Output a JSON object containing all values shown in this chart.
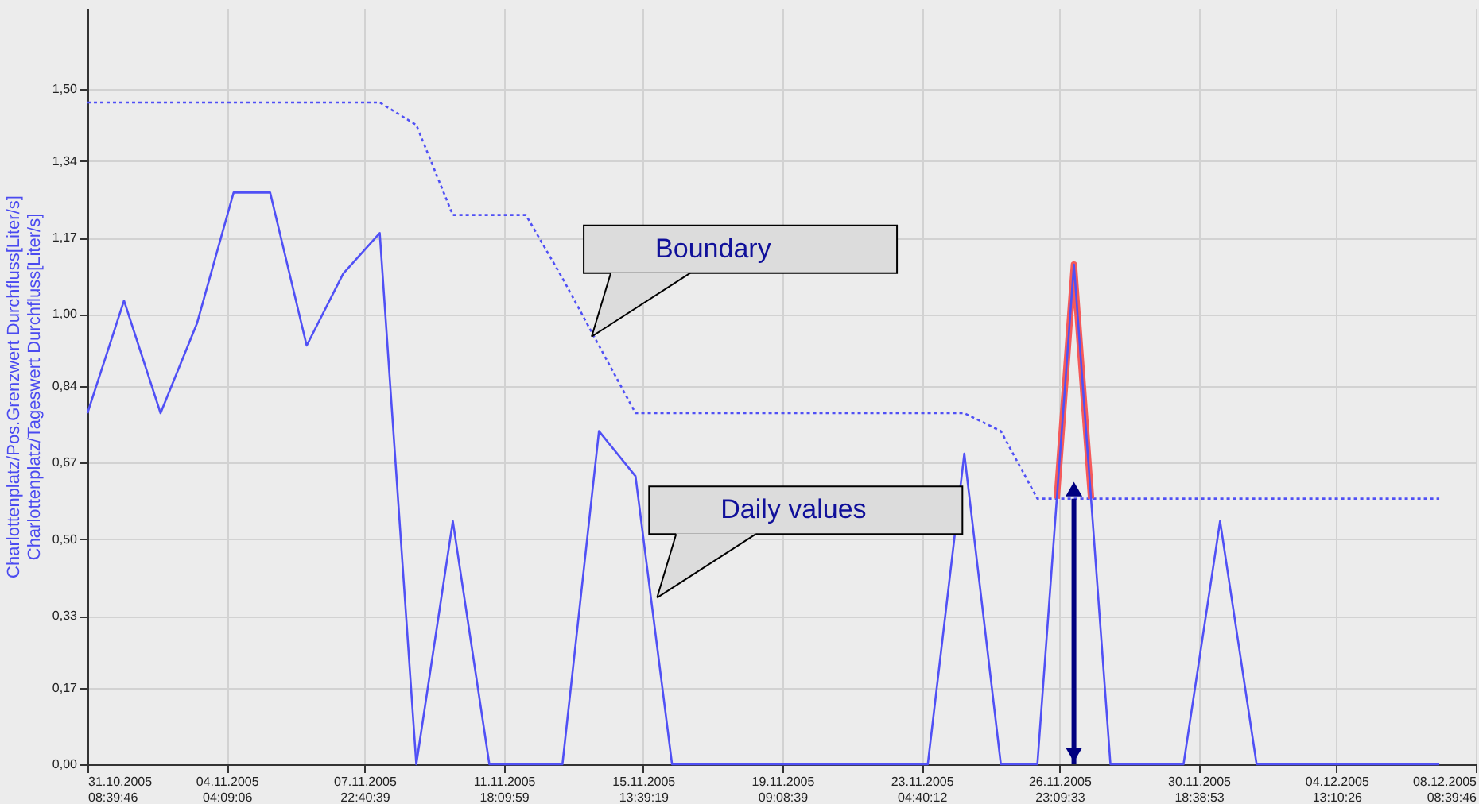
{
  "chart_data": {
    "type": "line",
    "ylabel": "Charlottenplatz/Pos.Grenzwert Durchfluss[Liter/s]\nCharlottenplatz/Tageswert Durchfluss[Liter/s]",
    "x": [
      "2005-10-31T08:39:46",
      "2005-11-01T08:39:46",
      "2005-11-02T08:39:46",
      "2005-11-03T08:39:46",
      "2005-11-04T08:39:46",
      "2005-11-05T08:39:46",
      "2005-11-06T08:39:46",
      "2005-11-07T08:39:46",
      "2005-11-08T08:39:46",
      "2005-11-09T08:39:46",
      "2005-11-10T08:39:46",
      "2005-11-11T08:39:46",
      "2005-11-12T08:39:46",
      "2005-11-13T08:39:46",
      "2005-11-14T08:39:46",
      "2005-11-15T08:39:46",
      "2005-11-16T08:39:46",
      "2005-11-17T08:39:46",
      "2005-11-18T08:39:46",
      "2005-11-19T08:39:46",
      "2005-11-20T08:39:46",
      "2005-11-21T08:39:46",
      "2005-11-22T08:39:46",
      "2005-11-23T08:39:46",
      "2005-11-24T08:39:46",
      "2005-11-25T08:39:46",
      "2005-11-26T08:39:46",
      "2005-11-27T08:39:46",
      "2005-11-28T08:39:46",
      "2005-11-29T08:39:46",
      "2005-11-30T08:39:46",
      "2005-12-01T08:39:46",
      "2005-12-02T08:39:46",
      "2005-12-03T08:39:46",
      "2005-12-04T08:39:46",
      "2005-12-05T08:39:46",
      "2005-12-06T08:39:46",
      "2005-12-07T08:39:46"
    ],
    "series": [
      {
        "type": "line",
        "color": "#5050f5",
        "line_style": "solid",
        "values": [
          0.78,
          1.03,
          0.78,
          0.98,
          1.27,
          1.27,
          0.93,
          1.09,
          1.18,
          0,
          0.54,
          0,
          0,
          0,
          0.74,
          0.64,
          0,
          0,
          0,
          0,
          0,
          0,
          0,
          0,
          0.69,
          0,
          0,
          1.11,
          0,
          0,
          0,
          0.54,
          0,
          0,
          0,
          0,
          0,
          0
        ]
      },
      {
        "type": "line",
        "color": "#5050f5",
        "line_style": "dotted",
        "values": [
          1.47,
          1.47,
          1.47,
          1.47,
          1.47,
          1.47,
          1.47,
          1.47,
          1.47,
          1.42,
          1.22,
          1.22,
          1.22,
          1.08,
          0.93,
          0.78,
          0.78,
          0.78,
          0.78,
          0.78,
          0.78,
          0.78,
          0.78,
          0.78,
          0.78,
          0.74,
          0.59,
          0.59,
          0.59,
          0.59,
          0.59,
          0.59,
          0.59,
          0.59,
          0.59,
          0.59,
          0.59,
          0.59
        ]
      },
      {
        "type": "line",
        "color": "#f55a5a",
        "line_style": "solid",
        "x": [
          "2005-11-26T21:23:00",
          "2005-11-27T08:39:46",
          "2005-11-27T19:57:00"
        ],
        "values": [
          0.59,
          1.11,
          0.59
        ]
      }
    ],
    "annotations": [
      {
        "text": "Boundary",
        "x": "2005-11-14T03:52:00",
        "y": 0.95
      },
      {
        "text": "Daily values",
        "x": "2005-11-15T22:49:00",
        "y": 0.37
      }
    ],
    "xlim": [
      "2005-10-31T08:39:46",
      "2005-12-08T08:39:46"
    ],
    "xticks": [
      {
        "value": "2005-10-31T08:39:46",
        "label": "31.10.2005 08:39:46"
      },
      {
        "value": "2005-11-04T04:09:06",
        "label": "04.11.2005 04:09:06"
      },
      {
        "value": "2005-11-07T22:40:39",
        "label": "07.11.2005 22:40:39"
      },
      {
        "value": "2005-11-11T18:09:59",
        "label": "11.11.2005 18:09:59"
      },
      {
        "value": "2005-11-15T13:39:19",
        "label": "15.11.2005 13:39:19"
      },
      {
        "value": "2005-11-19T09:08:39",
        "label": "19.11.2005 09:08:39"
      },
      {
        "value": "2005-11-23T04:40:12",
        "label": "23.11.2005 04:40:12"
      },
      {
        "value": "2005-11-26T23:09:33",
        "label": "26.11.2005 23:09:33"
      },
      {
        "value": "2005-11-30T18:38:53",
        "label": "30.11.2005 18:38:53"
      },
      {
        "value": "2005-12-04T13:10:26",
        "label": "04.12.2005 13:10:26"
      },
      {
        "value": "2005-12-08T08:39:46",
        "label": "08.12.2005 08:39:46"
      }
    ],
    "ylim": [
      0,
      1.68
    ],
    "yticks": [
      {
        "value": 0,
        "label": "0,00"
      },
      {
        "value": 0.17,
        "label": "0,17"
      },
      {
        "value": 0.33,
        "label": "0,33"
      },
      {
        "value": 0.5,
        "label": "0,50"
      },
      {
        "value": 0.67,
        "label": "0,67"
      },
      {
        "value": 0.84,
        "label": "0,84"
      },
      {
        "value": 1,
        "label": "1,00"
      },
      {
        "value": 1.17,
        "label": "1,17"
      },
      {
        "value": 1.34,
        "label": "1,34"
      },
      {
        "value": 1.5,
        "label": "1,50"
      }
    ],
    "grid": true
  }
}
